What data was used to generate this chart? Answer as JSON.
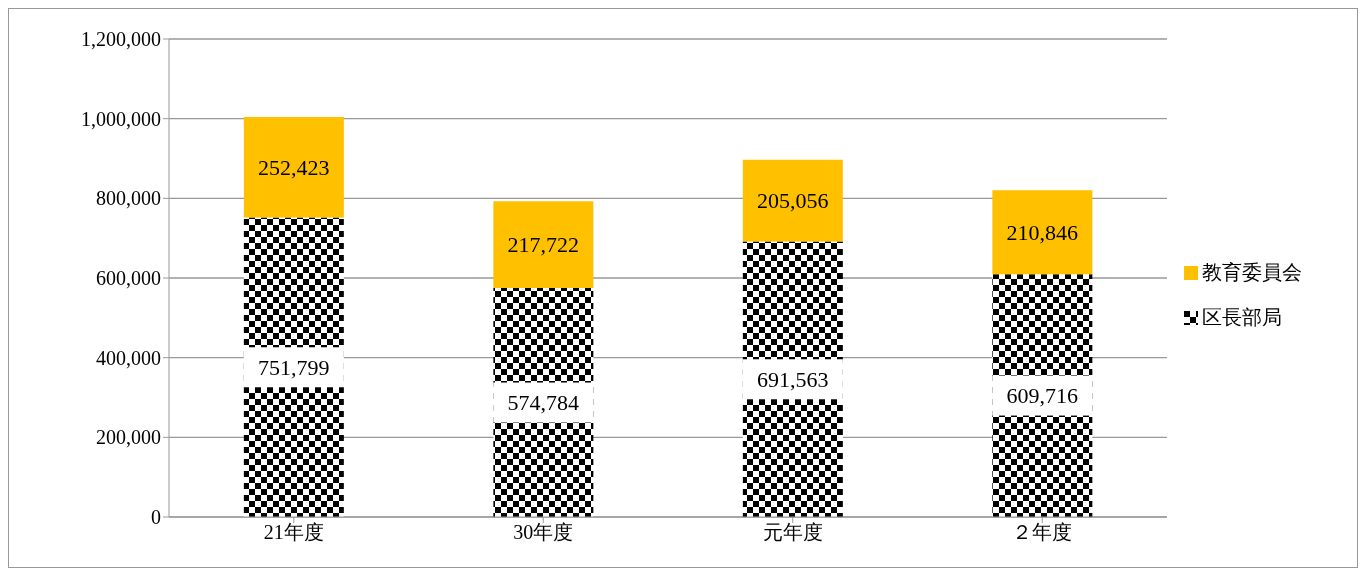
{
  "chart_data": {
    "type": "bar",
    "stacked": true,
    "categories": [
      "21年度",
      "30年度",
      "元年度",
      "２年度"
    ],
    "series": [
      {
        "name": "区長部局",
        "color": "#000000",
        "values": [
          751799,
          574784,
          691563,
          609716
        ],
        "value_labels": [
          "751,799",
          "574,784",
          "691,563",
          "609,716"
        ]
      },
      {
        "name": "教育委員会",
        "color": "#ffc000",
        "values": [
          252423,
          217722,
          205056,
          210846
        ],
        "value_labels": [
          "252,423",
          "217,722",
          "205,056",
          "210,846"
        ]
      }
    ],
    "ylim": [
      0,
      1200000
    ],
    "yticks": [
      {
        "value": 0,
        "label": "0"
      },
      {
        "value": 200000,
        "label": "200,000"
      },
      {
        "value": 400000,
        "label": "400,000"
      },
      {
        "value": 600000,
        "label": "600,000"
      },
      {
        "value": 800000,
        "label": "800,000"
      },
      {
        "value": 1000000,
        "label": "1,000,000"
      },
      {
        "value": 1200000,
        "label": "1,200,000"
      }
    ],
    "grid": "y",
    "legend": "right"
  }
}
